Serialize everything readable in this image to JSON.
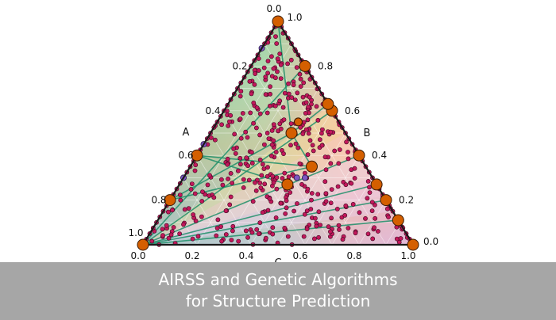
{
  "caption": {
    "line1": "AIRSS and Genetic Algorithms",
    "line2": "for Structure Prediction"
  },
  "colors": {
    "frame": "#1a1a1a",
    "tie_line": "#1f8f6a",
    "hull_point": "#d45f00",
    "sample_point": "#c2185b",
    "hull_edge_point": "#7e57c2",
    "caption_bg": "#a6a6a6",
    "caption_text": "#ffffff"
  },
  "chart_data": {
    "type": "scatter",
    "subtype": "ternary",
    "components": [
      "A",
      "B",
      "C"
    ],
    "vertex_labels": {
      "top": "0.0",
      "top_right": "1.0",
      "right": "0.0",
      "left": "1.0"
    },
    "axes": {
      "A": {
        "label": "A",
        "ticks": [
          "0.2",
          "0.4",
          "0.6",
          "0.8"
        ]
      },
      "B": {
        "label": "B",
        "ticks": [
          "0.8",
          "0.6",
          "0.4",
          "0.2"
        ]
      },
      "C": {
        "label": "C",
        "ticks": [
          "0.0",
          "0.2",
          "0.4",
          "0.6",
          "0.8",
          "1.0"
        ]
      }
    },
    "grid": true,
    "hull_points": [
      {
        "a": 1.0,
        "b": 0.0,
        "c": 0.0
      },
      {
        "a": 0.8,
        "b": 0.0,
        "c": 0.2
      },
      {
        "a": 0.6,
        "b": 0.0,
        "c": 0.4
      },
      {
        "a": 0.0,
        "b": 0.0,
        "c": 1.0
      },
      {
        "a": 0.0,
        "b": 1.0,
        "c": 0.0
      },
      {
        "a": 0.0,
        "b": 0.2,
        "c": 0.8
      },
      {
        "a": 0.0,
        "b": 0.4,
        "c": 0.6
      },
      {
        "a": 0.0,
        "b": 0.6,
        "c": 0.4
      },
      {
        "a": 0.0,
        "b": 0.73,
        "c": 0.27
      },
      {
        "a": 0.0,
        "b": 0.8,
        "c": 0.2
      },
      {
        "a": 0.0,
        "b": 0.89,
        "c": 0.11
      },
      {
        "a": 0.0,
        "b": 0.37,
        "c": 0.63
      },
      {
        "a": 0.2,
        "b": 0.3,
        "c": 0.5
      },
      {
        "a": 0.2,
        "b": 0.45,
        "c": 0.35
      },
      {
        "a": 0.33,
        "b": 0.4,
        "c": 0.27
      }
    ],
    "tie_lines": [
      [
        0,
        5
      ],
      [
        0,
        6
      ],
      [
        0,
        7
      ],
      [
        0,
        8
      ],
      [
        0,
        9
      ],
      [
        0,
        10
      ],
      [
        1,
        12
      ],
      [
        1,
        13
      ],
      [
        2,
        13
      ],
      [
        2,
        14
      ],
      [
        12,
        13
      ],
      [
        12,
        11
      ],
      [
        11,
        3
      ],
      [
        12,
        3
      ]
    ],
    "sample_point_count": 420
  }
}
